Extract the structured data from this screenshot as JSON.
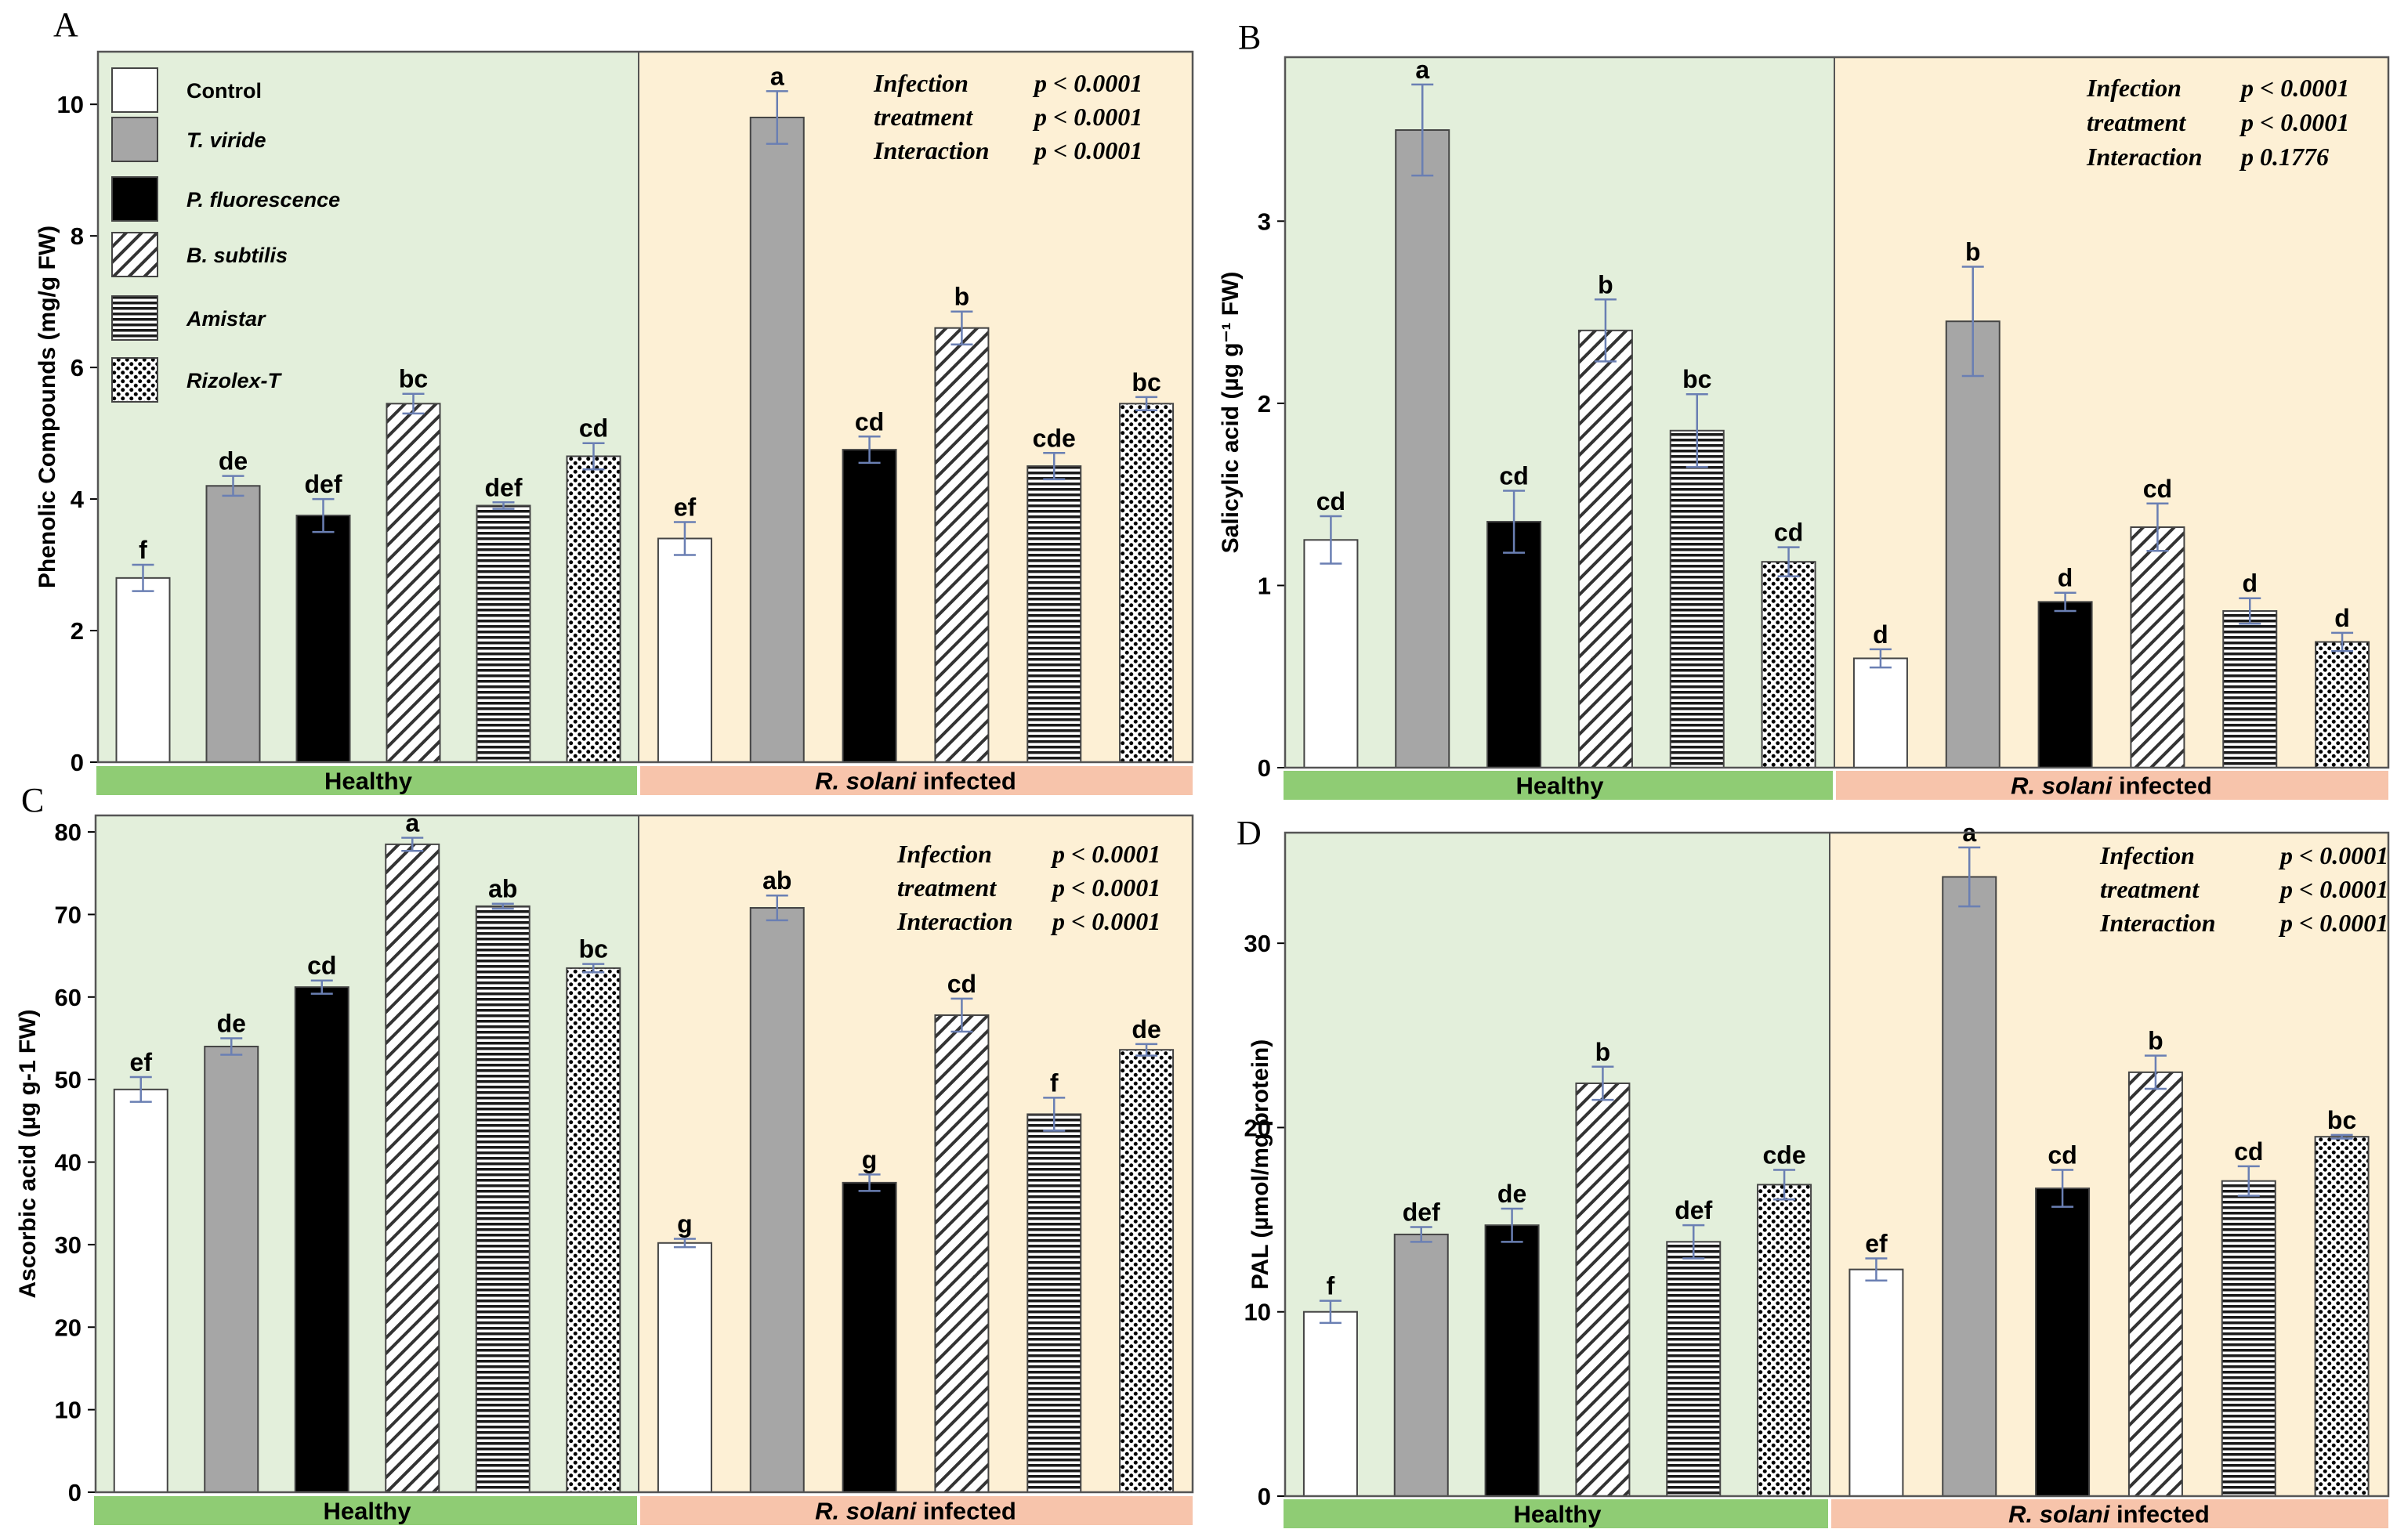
{
  "colors": {
    "healthy_bg": "#e3efdb",
    "infected_bg": "#fdf0d5",
    "healthy_strip": "#8fcc74",
    "infected_strip": "#f7c4ab",
    "error_bar": "#6a7fb3"
  },
  "legend": {
    "items": [
      {
        "label": "Control",
        "italic": false,
        "pattern": "white"
      },
      {
        "label": "T. viride",
        "italic": true,
        "pattern": "gray"
      },
      {
        "label": "P. fluorescence",
        "italic": true,
        "pattern": "black"
      },
      {
        "label": "B. subtilis",
        "italic": true,
        "pattern": "diag"
      },
      {
        "label": "Amistar",
        "italic": true,
        "pattern": "hstripe"
      },
      {
        "label": "Rizolex-T",
        "italic": true,
        "pattern": "dots"
      }
    ]
  },
  "groups": {
    "healthy": "Healthy",
    "infected_species": "R. solani",
    "infected_suffix": " infected"
  },
  "chart_data": [
    {
      "panel": "A",
      "type": "bar",
      "ylabel": "Phenolic Compounds (mg/g FW)",
      "ylim": [
        0,
        10.8
      ],
      "yticks": [
        0,
        2,
        4,
        6,
        8,
        10
      ],
      "groups": [
        "Healthy",
        "R. solani infected"
      ],
      "treatments": [
        "Control",
        "T. viride",
        "P. fluorescence",
        "B. subtilis",
        "Amistar",
        "Rizolex-T"
      ],
      "series": [
        {
          "group": "Healthy",
          "values": [
            2.8,
            4.2,
            3.75,
            5.45,
            3.9,
            4.65
          ],
          "errors": [
            0.2,
            0.15,
            0.25,
            0.15,
            0.05,
            0.2
          ],
          "letters": [
            "f",
            "de",
            "def",
            "bc",
            "def",
            "cd"
          ]
        },
        {
          "group": "R. solani infected",
          "values": [
            3.4,
            9.8,
            4.75,
            6.6,
            4.5,
            5.45
          ],
          "errors": [
            0.25,
            0.4,
            0.2,
            0.25,
            0.2,
            0.1
          ],
          "letters": [
            "ef",
            "a",
            "cd",
            "b",
            "cde",
            "bc"
          ]
        }
      ],
      "stats": [
        {
          "term": "Infection",
          "p": "p < 0.0001"
        },
        {
          "term": "treatment",
          "p": "p < 0.0001"
        },
        {
          "term": "Interaction",
          "p": "p < 0.0001"
        }
      ]
    },
    {
      "panel": "B",
      "type": "bar",
      "ylabel": "Salicylic acid (µg g⁻¹ FW)",
      "ylim": [
        0,
        3.9
      ],
      "yticks": [
        0,
        1,
        2,
        3
      ],
      "groups": [
        "Healthy",
        "R. solani infected"
      ],
      "treatments": [
        "Control",
        "T. viride",
        "P. fluorescence",
        "B. subtilis",
        "Amistar",
        "Rizolex-T"
      ],
      "series": [
        {
          "group": "Healthy",
          "values": [
            1.25,
            3.5,
            1.35,
            2.4,
            1.85,
            1.13
          ],
          "errors": [
            0.13,
            0.25,
            0.17,
            0.17,
            0.2,
            0.08
          ],
          "letters": [
            "cd",
            "a",
            "cd",
            "b",
            "bc",
            "cd"
          ]
        },
        {
          "group": "R. solani infected",
          "values": [
            0.6,
            2.45,
            0.91,
            1.32,
            0.86,
            0.69
          ],
          "errors": [
            0.05,
            0.3,
            0.05,
            0.13,
            0.07,
            0.05
          ],
          "letters": [
            "d",
            "b",
            "d",
            "cd",
            "d",
            "d"
          ]
        }
      ],
      "stats": [
        {
          "term": "Infection",
          "p": "p < 0.0001"
        },
        {
          "term": "treatment",
          "p": "p < 0.0001"
        },
        {
          "term": "Interaction",
          "p": "p  0.1776"
        }
      ]
    },
    {
      "panel": "C",
      "type": "bar",
      "ylabel": "Ascorbic acid (µg g-1 FW)",
      "ylim": [
        0,
        82
      ],
      "yticks": [
        0,
        10,
        20,
        30,
        40,
        50,
        60,
        70,
        80
      ],
      "groups": [
        "Healthy",
        "R. solani infected"
      ],
      "treatments": [
        "Control",
        "T. viride",
        "P. fluorescence",
        "B. subtilis",
        "Amistar",
        "Rizolex-T"
      ],
      "series": [
        {
          "group": "Healthy",
          "values": [
            48.8,
            54,
            61.2,
            78.5,
            71,
            63.5
          ],
          "errors": [
            1.5,
            1.0,
            0.8,
            0.8,
            0.3,
            0.5
          ],
          "letters": [
            "ef",
            "de",
            "cd",
            "a",
            "ab",
            "bc"
          ]
        },
        {
          "group": "R. solani infected",
          "values": [
            30.2,
            70.8,
            37.5,
            57.8,
            45.8,
            53.6
          ],
          "errors": [
            0.5,
            1.5,
            1.0,
            2.0,
            2.0,
            0.7
          ],
          "letters": [
            "g",
            "ab",
            "g",
            "cd",
            "f",
            "de"
          ]
        }
      ],
      "stats": [
        {
          "term": "Infection",
          "p": "p < 0.0001"
        },
        {
          "term": "treatment",
          "p": "p < 0.0001"
        },
        {
          "term": "Interaction",
          "p": "p < 0.0001"
        }
      ]
    },
    {
      "panel": "D",
      "type": "bar",
      "ylabel": "PAL (µmol/mg protein)",
      "ylim": [
        0,
        36
      ],
      "yticks": [
        0,
        10,
        20,
        30
      ],
      "groups": [
        "Healthy",
        "R. solani infected"
      ],
      "treatments": [
        "Control",
        "T. viride",
        "P. fluorescence",
        "B. subtilis",
        "Amistar",
        "Rizolex-T"
      ],
      "series": [
        {
          "group": "Healthy",
          "values": [
            10.0,
            14.2,
            14.7,
            22.4,
            13.8,
            16.9
          ],
          "errors": [
            0.6,
            0.4,
            0.9,
            0.9,
            0.9,
            0.8
          ],
          "letters": [
            "f",
            "def",
            "de",
            "b",
            "def",
            "cde"
          ]
        },
        {
          "group": "R. solani infected",
          "values": [
            12.3,
            33.6,
            16.7,
            23.0,
            17.1,
            19.5
          ],
          "errors": [
            0.6,
            1.6,
            1.0,
            0.9,
            0.8,
            0.1
          ],
          "letters": [
            "ef",
            "a",
            "cd",
            "b",
            "cd",
            "bc"
          ]
        }
      ],
      "stats": [
        {
          "term": "Infection",
          "p": "p < 0.0001"
        },
        {
          "term": "treatment",
          "p": "p < 0.0001"
        },
        {
          "term": "Interaction",
          "p": "p < 0.0001"
        }
      ]
    }
  ]
}
